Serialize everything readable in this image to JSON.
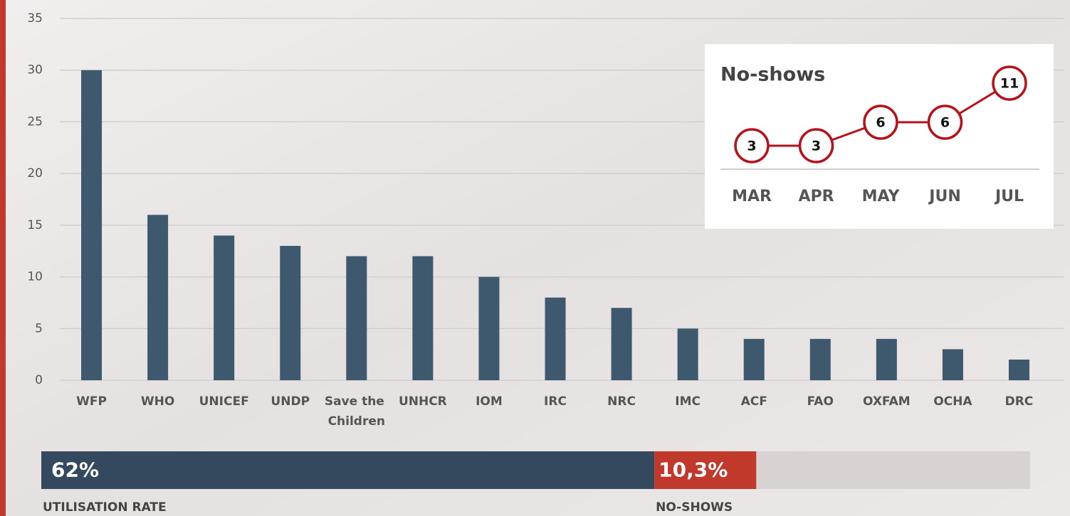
{
  "chart_data": [
    {
      "type": "bar",
      "categories": [
        "WFP",
        "WHO",
        "UNICEF",
        "UNDP",
        "Save the Children",
        "UNHCR",
        "IOM",
        "IRC",
        "NRC",
        "IMC",
        "ACF",
        "FAO",
        "OXFAM",
        "OCHA",
        "DRC"
      ],
      "values": [
        30,
        16,
        14,
        13,
        12,
        12,
        10,
        8,
        7,
        5,
        4,
        4,
        4,
        3,
        2
      ],
      "color": "#3e586d",
      "ylim": [
        0,
        35
      ],
      "yticks": [
        0,
        5,
        10,
        15,
        20,
        25,
        30,
        35
      ],
      "grid": true
    },
    {
      "type": "line",
      "title": "No-shows",
      "categories": [
        "MAR",
        "APR",
        "MAY",
        "JUN",
        "JUL"
      ],
      "values": [
        3,
        3,
        6,
        6,
        11
      ],
      "color": "#b5121b"
    },
    {
      "type": "stacked_bar",
      "xlim": [
        0,
        100
      ],
      "series": [
        {
          "name": "UTILISATION RATE",
          "color": "#34495e",
          "values": [
            62
          ],
          "value_labels": [
            "62%"
          ]
        },
        {
          "name": "NO-SHOWS",
          "color": "#c0392b",
          "values": [
            10.3
          ],
          "value_labels": [
            "10,3%"
          ]
        }
      ]
    }
  ]
}
